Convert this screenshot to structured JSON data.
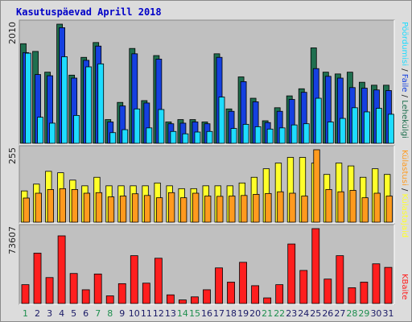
{
  "title": "Kasutuspäevad Aprill 2018",
  "colors": {
    "panel_bg": "#c0c0c0",
    "lehekulgi": "#1f6f4f",
    "failid": "#1540e0",
    "poordumisi": "#1edcff",
    "kulastajaid": "#ffff2a",
    "kulastusi": "#ff9a1e",
    "kbaite": "#ff1e1e",
    "weekend_label": "#1f8f4f",
    "weekday_label": "#1a1a66"
  },
  "chart_data": [
    {
      "type": "bar",
      "title": "Kasutuspäevad Aprill 2018",
      "categories": [
        "1",
        "2",
        "3",
        "4",
        "5",
        "6",
        "7",
        "8",
        "9",
        "10",
        "11",
        "12",
        "13",
        "14",
        "15",
        "16",
        "17",
        "18",
        "19",
        "20",
        "21",
        "22",
        "23",
        "24",
        "25",
        "26",
        "27",
        "28",
        "29",
        "30",
        "31"
      ],
      "weekend_days": [
        "1",
        "7",
        "8",
        "14",
        "15",
        "21",
        "22",
        "28",
        "29"
      ],
      "ymax_label": "2010",
      "ylim": [
        0,
        2010
      ],
      "legend": [
        "Lehekülgi",
        "Faile",
        "Pöördumisi"
      ],
      "series": [
        {
          "name": "Lehekülgi",
          "values": [
            1680,
            1550,
            1200,
            2010,
            1150,
            1450,
            1700,
            400,
            690,
            1600,
            720,
            1480,
            360,
            400,
            400,
            360,
            1510,
            580,
            1120,
            760,
            380,
            600,
            800,
            920,
            1610,
            1200,
            1170,
            1200,
            1030,
            980,
            980
          ]
        },
        {
          "name": "Faile",
          "values": [
            1530,
            1160,
            1140,
            1950,
            1100,
            1400,
            1640,
            360,
            630,
            1510,
            680,
            1420,
            330,
            340,
            360,
            330,
            1450,
            540,
            1040,
            700,
            350,
            540,
            740,
            860,
            1260,
            1130,
            1100,
            940,
            930,
            900,
            890
          ]
        },
        {
          "name": "Pöördumisi",
          "values": [
            1520,
            440,
            340,
            1460,
            470,
            1290,
            1340,
            180,
            230,
            580,
            260,
            570,
            200,
            160,
            190,
            200,
            780,
            250,
            320,
            280,
            240,
            260,
            310,
            330,
            760,
            360,
            420,
            600,
            530,
            590,
            490
          ]
        }
      ]
    },
    {
      "type": "bar",
      "categories": [
        "1",
        "2",
        "3",
        "4",
        "5",
        "6",
        "7",
        "8",
        "9",
        "10",
        "11",
        "12",
        "13",
        "14",
        "15",
        "16",
        "17",
        "18",
        "19",
        "20",
        "21",
        "22",
        "23",
        "24",
        "25",
        "26",
        "27",
        "28",
        "29",
        "30",
        "31"
      ],
      "ymax_label": "255",
      "ylim": [
        0,
        255
      ],
      "legend": [
        "Külastajaid",
        "Külastusi"
      ],
      "series": [
        {
          "name": "Külastajaid",
          "values": [
            110,
            134,
            179,
            174,
            148,
            128,
            158,
            128,
            128,
            128,
            128,
            138,
            128,
            118,
            118,
            128,
            128,
            128,
            138,
            158,
            188,
            208,
            228,
            228,
            208,
            168,
            208,
            198,
            158,
            188,
            168
          ]
        },
        {
          "name": "Külastusi",
          "values": [
            85,
            102,
            115,
            118,
            115,
            102,
            104,
            89,
            92,
            100,
            94,
            86,
            104,
            86,
            102,
            92,
            91,
            92,
            94,
            98,
            101,
            107,
            102,
            92,
            255,
            115,
            107,
            112,
            86,
            102,
            92
          ]
        }
      ]
    },
    {
      "type": "bar",
      "categories": [
        "1",
        "2",
        "3",
        "4",
        "5",
        "6",
        "7",
        "8",
        "9",
        "10",
        "11",
        "12",
        "13",
        "14",
        "15",
        "16",
        "17",
        "18",
        "19",
        "20",
        "21",
        "22",
        "23",
        "24",
        "25",
        "26",
        "27",
        "28",
        "29",
        "30",
        "31"
      ],
      "ymax_label": "73607",
      "ylim": [
        0,
        73607
      ],
      "legend": [
        "KBaite"
      ],
      "series": [
        {
          "name": "KBaite",
          "values": [
            18500,
            49500,
            25500,
            66500,
            29500,
            13500,
            29000,
            7500,
            19500,
            47000,
            20000,
            44500,
            8500,
            3500,
            6500,
            13500,
            35000,
            21000,
            40500,
            17500,
            5500,
            18500,
            58500,
            32500,
            73607,
            24000,
            47000,
            15500,
            21000,
            39000,
            35500
          ]
        }
      ]
    }
  ]
}
